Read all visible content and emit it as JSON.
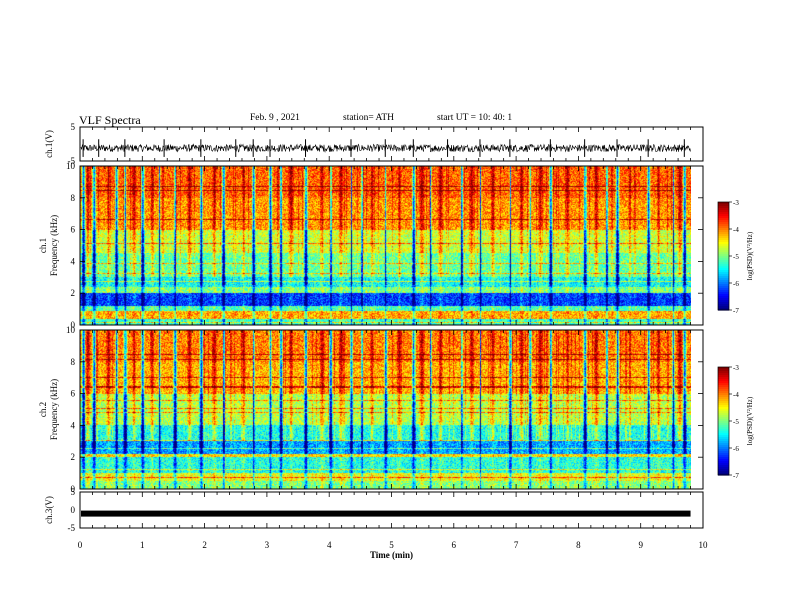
{
  "header": {
    "title": "VLF Spectra",
    "date": "Feb. 9 , 2021",
    "station": "station= ATH",
    "start": "start  UT =   10: 40: 1"
  },
  "chart_data": [
    {
      "type": "line",
      "id": "ch1-waveform",
      "ylabel": "ch.1(V)",
      "ylim": [
        -5,
        5
      ],
      "yticks": [
        "5",
        "-5"
      ],
      "xlim": [
        0,
        10
      ],
      "x_extent_min": 9.8,
      "baseline": -1.2,
      "amplitude": 1.1,
      "spikes": [
        0.05,
        0.3,
        0.72,
        1.35,
        1.94,
        2.5,
        2.78,
        3.05,
        3.62,
        4.35,
        4.9,
        5.35,
        5.9,
        6.42,
        6.9,
        7.55,
        8.1,
        8.62,
        9.12,
        9.7
      ]
    },
    {
      "type": "heatmap",
      "id": "ch1-spectrogram",
      "ylabel": "ch.1\nFrequency (kHz)",
      "ylim": [
        0,
        10
      ],
      "yticks": [
        "0",
        "2",
        "4",
        "6",
        "8",
        "10"
      ],
      "xlim": [
        0,
        10
      ],
      "x_extent_min": 9.8,
      "colorbar": {
        "label": "log(PSD)(V²/Hz)",
        "range": [
          -7,
          -3
        ],
        "ticks": [
          "-3",
          "-4",
          "-5",
          "-6",
          "-7"
        ]
      },
      "bands_khz": [
        {
          "from": 0.0,
          "to": 0.4,
          "level": -5.3
        },
        {
          "from": 0.4,
          "to": 0.9,
          "level": -4.2
        },
        {
          "from": 0.9,
          "to": 1.2,
          "level": -5.2
        },
        {
          "from": 1.2,
          "to": 2.0,
          "level": -6.3
        },
        {
          "from": 2.0,
          "to": 2.4,
          "level": -5.0
        },
        {
          "from": 2.4,
          "to": 3.0,
          "level": -5.5
        },
        {
          "from": 3.0,
          "to": 4.5,
          "level": -5.1
        },
        {
          "from": 4.5,
          "to": 6.0,
          "level": -4.7
        },
        {
          "from": 6.0,
          "to": 8.0,
          "level": -4.1
        },
        {
          "from": 8.0,
          "to": 10.0,
          "level": -3.9
        }
      ],
      "dark_streaks_min": [
        0.05,
        0.22,
        0.58,
        0.72,
        1.0,
        1.27,
        1.52,
        1.94,
        2.3,
        2.78,
        3.05,
        3.22,
        3.62,
        4.02,
        4.35,
        4.52,
        4.9,
        5.35,
        5.62,
        6.12,
        6.42,
        6.9,
        7.22,
        7.55,
        8.1,
        8.45,
        8.62,
        9.12,
        9.52,
        9.7
      ],
      "red_streaks_min": [
        0.12,
        0.45,
        0.86,
        1.15,
        1.75,
        2.15,
        2.62,
        3.38,
        3.88,
        4.18,
        4.68,
        5.12,
        5.48,
        5.78,
        6.28,
        6.62,
        7.08,
        7.38,
        7.82,
        8.28,
        8.82,
        9.28,
        9.62
      ]
    },
    {
      "type": "heatmap",
      "id": "ch2-spectrogram",
      "ylabel": "ch.2\nFrequency (kHz)",
      "ylim": [
        0,
        10
      ],
      "yticks": [
        "0",
        "2",
        "4",
        "6",
        "8",
        "10"
      ],
      "xlim": [
        0,
        10
      ],
      "x_extent_min": 9.8,
      "colorbar": {
        "label": "log(PSD)(V²/Hz)",
        "range": [
          -7,
          -3
        ],
        "ticks": [
          "-3",
          "-4",
          "-5",
          "-6",
          "-7"
        ]
      },
      "bands_khz": [
        {
          "from": 0.0,
          "to": 0.5,
          "level": -5.0
        },
        {
          "from": 0.5,
          "to": 1.0,
          "level": -4.6
        },
        {
          "from": 1.0,
          "to": 2.0,
          "level": -5.4
        },
        {
          "from": 2.0,
          "to": 2.2,
          "level": -4.4
        },
        {
          "from": 2.2,
          "to": 3.0,
          "level": -5.9
        },
        {
          "from": 3.0,
          "to": 4.0,
          "level": -5.4
        },
        {
          "from": 4.0,
          "to": 6.0,
          "level": -4.8
        },
        {
          "from": 6.0,
          "to": 8.0,
          "level": -4.2
        },
        {
          "from": 8.0,
          "to": 10.0,
          "level": -4.0
        }
      ],
      "dark_streaks_min": [
        0.05,
        0.22,
        0.58,
        0.72,
        1.0,
        1.27,
        1.52,
        1.94,
        2.3,
        2.78,
        3.05,
        3.22,
        3.62,
        4.02,
        4.35,
        4.52,
        4.9,
        5.35,
        5.62,
        6.12,
        6.42,
        6.9,
        7.22,
        7.55,
        8.1,
        8.45,
        8.62,
        9.12,
        9.52,
        9.7
      ],
      "red_streaks_min": [
        0.12,
        0.45,
        0.86,
        1.15,
        1.75,
        2.15,
        2.62,
        3.38,
        3.88,
        4.18,
        4.68,
        5.12,
        5.48,
        5.78,
        6.28,
        6.62,
        7.08,
        7.38,
        7.82,
        8.28,
        8.82,
        9.28,
        9.62
      ]
    },
    {
      "type": "line",
      "id": "ch3-waveform",
      "ylabel": "ch.3(V)",
      "ylim": [
        -5,
        5
      ],
      "yticks": [
        "5",
        "0",
        "-5"
      ],
      "xlim": [
        0,
        10
      ],
      "x_extent_min": 9.8,
      "level": -1.0,
      "xlabel": "Time  (min)",
      "xticks": [
        "0",
        "1",
        "2",
        "3",
        "4",
        "5",
        "6",
        "7",
        "8",
        "9",
        "10"
      ]
    }
  ]
}
